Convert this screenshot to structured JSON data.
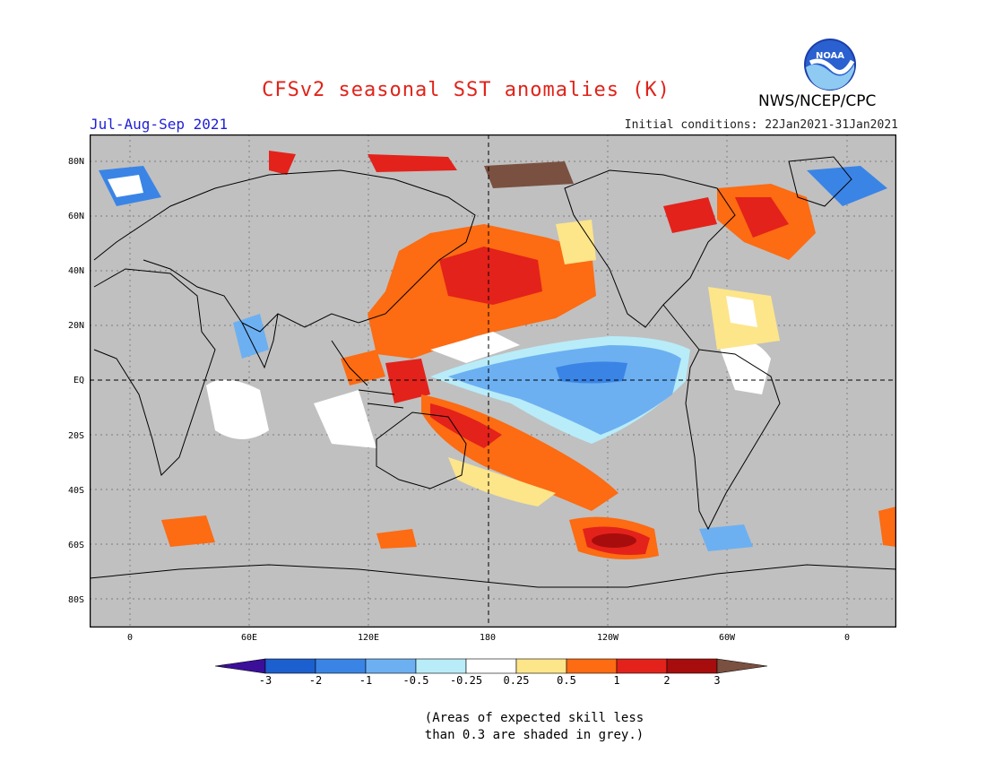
{
  "title": "CFSv2 seasonal SST anomalies (K)",
  "season": "Jul-Aug-Sep 2021",
  "initial_conditions": "Initial conditions: 22Jan2021-31Jan2021",
  "agency": "NWS/NCEP/CPC",
  "logo_text": "NOAA",
  "lat_labels": [
    "80N",
    "60N",
    "40N",
    "20N",
    "EQ",
    "20S",
    "40S",
    "60S",
    "80S"
  ],
  "lon_labels": [
    "0",
    "60E",
    "120E",
    "180",
    "120W",
    "60W",
    "0"
  ],
  "colorbar": {
    "labels": [
      "-3",
      "-2",
      "-1",
      "-0.5",
      "-0.25",
      "0.25",
      "0.5",
      "1",
      "2",
      "3"
    ],
    "colors": [
      "#3b0f9a",
      "#1c5fcf",
      "#3a84e6",
      "#6cb0f2",
      "#b8ecf8",
      "#ffffff",
      "#fde58a",
      "#fd6b12",
      "#e3221b",
      "#a80d0d",
      "#7a5040"
    ]
  },
  "note": [
    "(Areas of expected skill less",
    "than 0.3 are shaded in grey.)"
  ],
  "colors": {
    "grey": "#c0c0c0",
    "title": "#e0231a",
    "season": "#1f1fd6"
  }
}
